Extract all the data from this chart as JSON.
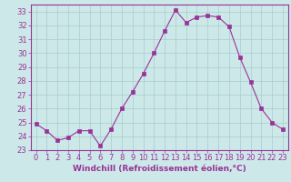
{
  "x": [
    0,
    1,
    2,
    3,
    4,
    5,
    6,
    7,
    8,
    9,
    10,
    11,
    12,
    13,
    14,
    15,
    16,
    17,
    18,
    19,
    20,
    21,
    22,
    23
  ],
  "y": [
    24.9,
    24.4,
    23.7,
    23.9,
    24.4,
    24.4,
    23.3,
    24.5,
    26.0,
    27.2,
    28.5,
    30.0,
    31.6,
    33.1,
    32.2,
    32.6,
    32.7,
    32.6,
    31.9,
    29.7,
    27.9,
    26.0,
    25.0,
    24.5
  ],
  "line_color": "#993399",
  "marker": "s",
  "marker_size": 2.5,
  "xlabel": "Windchill (Refroidissement éolien,°C)",
  "xlim": [
    -0.5,
    23.5
  ],
  "ylim": [
    23,
    33.5
  ],
  "yticks": [
    23,
    24,
    25,
    26,
    27,
    28,
    29,
    30,
    31,
    32,
    33
  ],
  "xticks": [
    0,
    1,
    2,
    3,
    4,
    5,
    6,
    7,
    8,
    9,
    10,
    11,
    12,
    13,
    14,
    15,
    16,
    17,
    18,
    19,
    20,
    21,
    22,
    23
  ],
  "background_color": "#cce8e8",
  "grid_color": "#aacccc",
  "axis_color": "#993399",
  "tick_color": "#993399",
  "label_color": "#993399",
  "label_fontsize": 6.5,
  "tick_fontsize": 6.0
}
